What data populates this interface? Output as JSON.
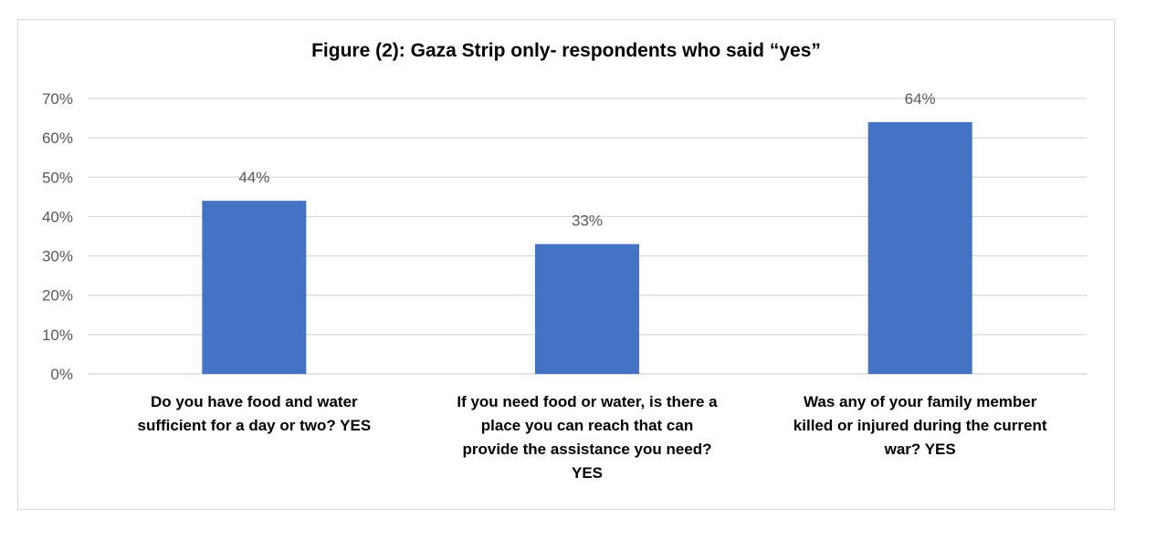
{
  "chart_data": {
    "type": "bar",
    "title": "Figure (2): Gaza Strip only- respondents who said “yes”",
    "xlabel": "",
    "ylabel": "",
    "categories": [
      [
        "Do you have food and water",
        "sufficient for a day or two? YES"
      ],
      [
        "If you need food or water, is there a",
        "place you can reach that can",
        "provide the assistance you need?",
        "YES"
      ],
      [
        "Was any of your family member",
        "killed or injured during the current",
        "war? YES"
      ]
    ],
    "values": [
      44,
      33,
      64
    ],
    "value_labels": [
      "44%",
      "33%",
      "64%"
    ],
    "ylim": [
      0,
      70
    ],
    "yticks": [
      0,
      10,
      20,
      30,
      40,
      50,
      60,
      70
    ],
    "ytick_labels": [
      "0%",
      "10%",
      "20%",
      "30%",
      "40%",
      "50%",
      "60%",
      "70%"
    ],
    "grid": true,
    "bar_color": "#4472c4",
    "grid_color": "#d9d9d9"
  }
}
